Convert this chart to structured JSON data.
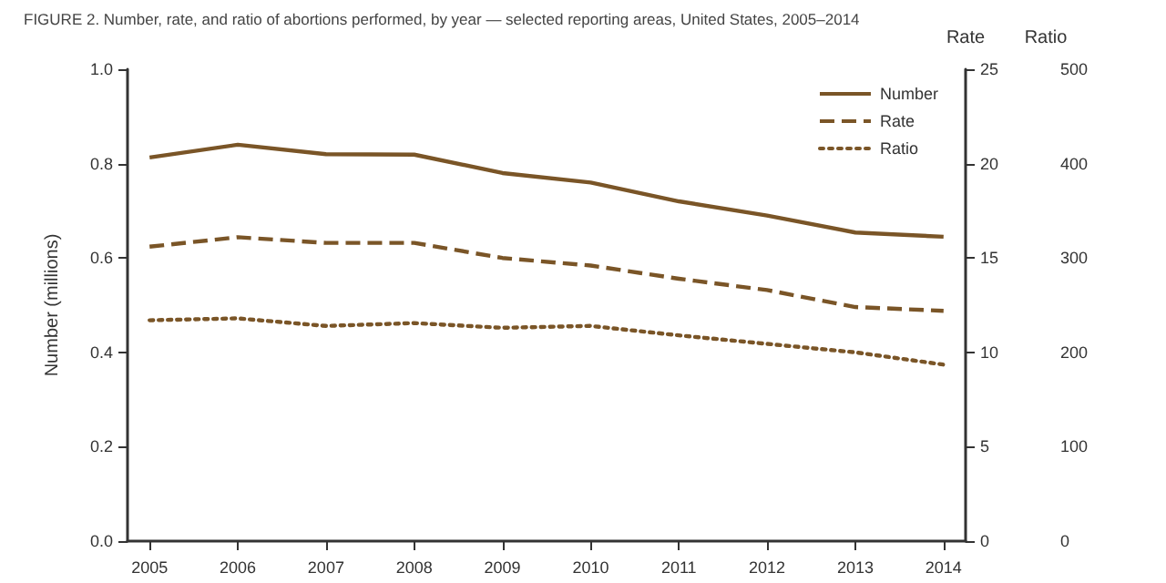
{
  "chart_data": {
    "type": "line",
    "title": "FIGURE 2. Number, rate, and ratio of abortions performed, by year — selected reporting areas, United States, 2005–2014",
    "ylabel": "Number (millions)",
    "y2label": "Rate",
    "y3label": "Ratio",
    "x": [
      2005,
      2006,
      2007,
      2008,
      2009,
      2010,
      2011,
      2012,
      2013,
      2014
    ],
    "xlim": [
      2004.75,
      2014.25
    ],
    "xticks": [
      2005,
      2006,
      2007,
      2008,
      2009,
      2010,
      2011,
      2012,
      2013,
      2014
    ],
    "ylim": [
      0,
      1
    ],
    "yticks": [
      {
        "value": 0,
        "label": "0.0"
      },
      {
        "value": 0.2,
        "label": "0.2"
      },
      {
        "value": 0.4,
        "label": "0.4"
      },
      {
        "value": 0.6,
        "label": "0.6"
      },
      {
        "value": 0.8,
        "label": "0.8"
      },
      {
        "value": 1,
        "label": "1.0"
      }
    ],
    "y2lim": [
      0,
      25
    ],
    "y2ticks": [
      0,
      5,
      10,
      15,
      20,
      25
    ],
    "y3lim": [
      0,
      500
    ],
    "y3ticks": [
      0,
      100,
      200,
      300,
      400,
      500
    ],
    "series": [
      {
        "name": "Number",
        "color": "#7a5527",
        "line_style": "solid",
        "values": [
          0.813,
          0.84,
          0.82,
          0.819,
          0.78,
          0.76,
          0.72,
          0.69,
          0.654,
          0.645
        ]
      },
      {
        "name": "Rate",
        "color": "#7a5527",
        "line_style": "dashed",
        "axis": "y2",
        "values": [
          15.6,
          16.1,
          15.8,
          15.8,
          15.0,
          14.6,
          13.9,
          13.3,
          12.4,
          12.2
        ]
      },
      {
        "name": "Ratio",
        "color": "#7a5527",
        "line_style": "dotted",
        "axis": "y3",
        "values": [
          234,
          236,
          228,
          231,
          226,
          228,
          218,
          209,
          200,
          187
        ]
      }
    ],
    "marker": "none",
    "grid": false,
    "legend": "top right"
  }
}
